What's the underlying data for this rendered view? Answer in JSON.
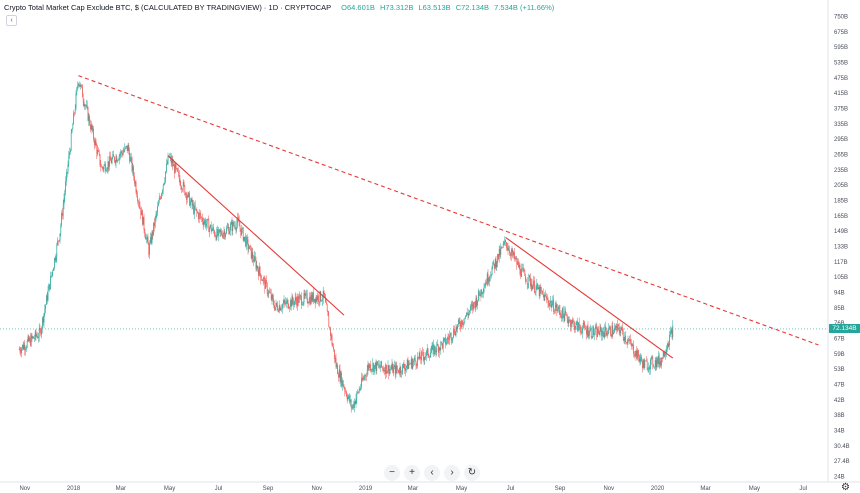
{
  "header": {
    "title": "Crypto Total Market Cap Exclude BTC, $ (CALCULATED BY TRADINGVIEW) · 1D · CRYPTOCAP",
    "open": "O64.601B",
    "high": "H73.312B",
    "low": "L63.513B",
    "close": "C72.134B",
    "change": "7.534B (+11.66%)"
  },
  "chart_data": {
    "type": "candlestick",
    "x_tick_labels": [
      "Nov",
      "2018",
      "Mar",
      "May",
      "Jul",
      "Sep",
      "Nov",
      "2019",
      "Mar",
      "May",
      "Jul",
      "Sep",
      "Nov",
      "2020",
      "Mar",
      "May",
      "Jul"
    ],
    "y_tick_labels": [
      "750B",
      "675B",
      "595B",
      "535B",
      "475B",
      "415B",
      "375B",
      "335B",
      "295B",
      "265B",
      "235B",
      "205B",
      "185B",
      "165B",
      "149B",
      "133B",
      "117B",
      "105B",
      "94B",
      "85B",
      "76B",
      "67B",
      "59B",
      "53B",
      "47B",
      "42B",
      "38B",
      "34B",
      "30.4B",
      "27.4B",
      "24B"
    ],
    "y_scale": "log",
    "last_price": "72.134B",
    "trendlines": [
      {
        "style": "dashed",
        "color": "#e53935",
        "from": [
          "2018-01-07",
          480
        ],
        "to": [
          "2020-07-20",
          64
        ]
      },
      {
        "style": "solid",
        "color": "#e53935",
        "from": [
          "2018-04-30",
          262
        ],
        "to": [
          "2018-12-05",
          80
        ]
      },
      {
        "style": "solid",
        "color": "#e53935",
        "from": [
          "2019-06-25",
          143
        ],
        "to": [
          "2020-01-20",
          58
        ]
      }
    ],
    "series_anchors": [
      [
        "2017-10-25",
        62
      ],
      [
        "2017-11-20",
        70
      ],
      [
        "2017-12-15",
        150
      ],
      [
        "2018-01-07",
        470
      ],
      [
        "2018-02-05",
        240
      ],
      [
        "2018-03-10",
        280
      ],
      [
        "2018-04-05",
        130
      ],
      [
        "2018-04-30",
        262
      ],
      [
        "2018-06-01",
        175
      ],
      [
        "2018-06-30",
        145
      ],
      [
        "2018-07-25",
        160
      ],
      [
        "2018-08-15",
        120
      ],
      [
        "2018-09-10",
        85
      ],
      [
        "2018-10-10",
        90
      ],
      [
        "2018-11-10",
        92
      ],
      [
        "2018-11-25",
        55
      ],
      [
        "2018-12-15",
        40
      ],
      [
        "2019-01-05",
        55
      ],
      [
        "2019-02-10",
        53
      ],
      [
        "2019-03-05",
        57
      ],
      [
        "2019-04-10",
        65
      ],
      [
        "2019-05-15",
        85
      ],
      [
        "2019-06-25",
        138
      ],
      [
        "2019-07-15",
        110
      ],
      [
        "2019-08-15",
        90
      ],
      [
        "2019-09-20",
        74
      ],
      [
        "2019-10-15",
        70
      ],
      [
        "2019-11-15",
        72
      ],
      [
        "2019-12-15",
        55
      ],
      [
        "2020-01-05",
        57
      ],
      [
        "2020-01-20",
        72
      ]
    ]
  }
}
